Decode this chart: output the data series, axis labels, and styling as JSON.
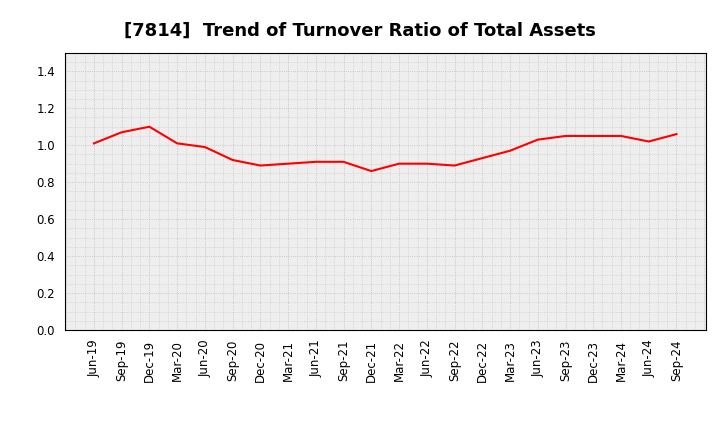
{
  "title": "[7814]  Trend of Turnover Ratio of Total Assets",
  "line_color": "#FF0000",
  "line_width": 1.5,
  "background_color": "#FFFFFF",
  "plot_bg_color": "#EEEEEE",
  "grid_color": "#BBBBBB",
  "ylim": [
    0.0,
    1.5
  ],
  "yticks": [
    0.0,
    0.2,
    0.4,
    0.6,
    0.8,
    1.0,
    1.2,
    1.4
  ],
  "x_labels": [
    "Jun-19",
    "Sep-19",
    "Dec-19",
    "Mar-20",
    "Jun-20",
    "Sep-20",
    "Dec-20",
    "Mar-21",
    "Jun-21",
    "Sep-21",
    "Dec-21",
    "Mar-22",
    "Jun-22",
    "Sep-22",
    "Dec-22",
    "Mar-23",
    "Jun-23",
    "Sep-23",
    "Dec-23",
    "Mar-24",
    "Jun-24",
    "Sep-24"
  ],
  "y_values": [
    1.01,
    1.07,
    1.1,
    1.01,
    0.99,
    0.92,
    0.89,
    0.9,
    0.91,
    0.91,
    0.86,
    0.9,
    0.9,
    0.89,
    0.93,
    0.97,
    1.03,
    1.05,
    1.05,
    1.05,
    1.02,
    1.06
  ],
  "title_fontsize": 13,
  "tick_fontsize": 8.5
}
